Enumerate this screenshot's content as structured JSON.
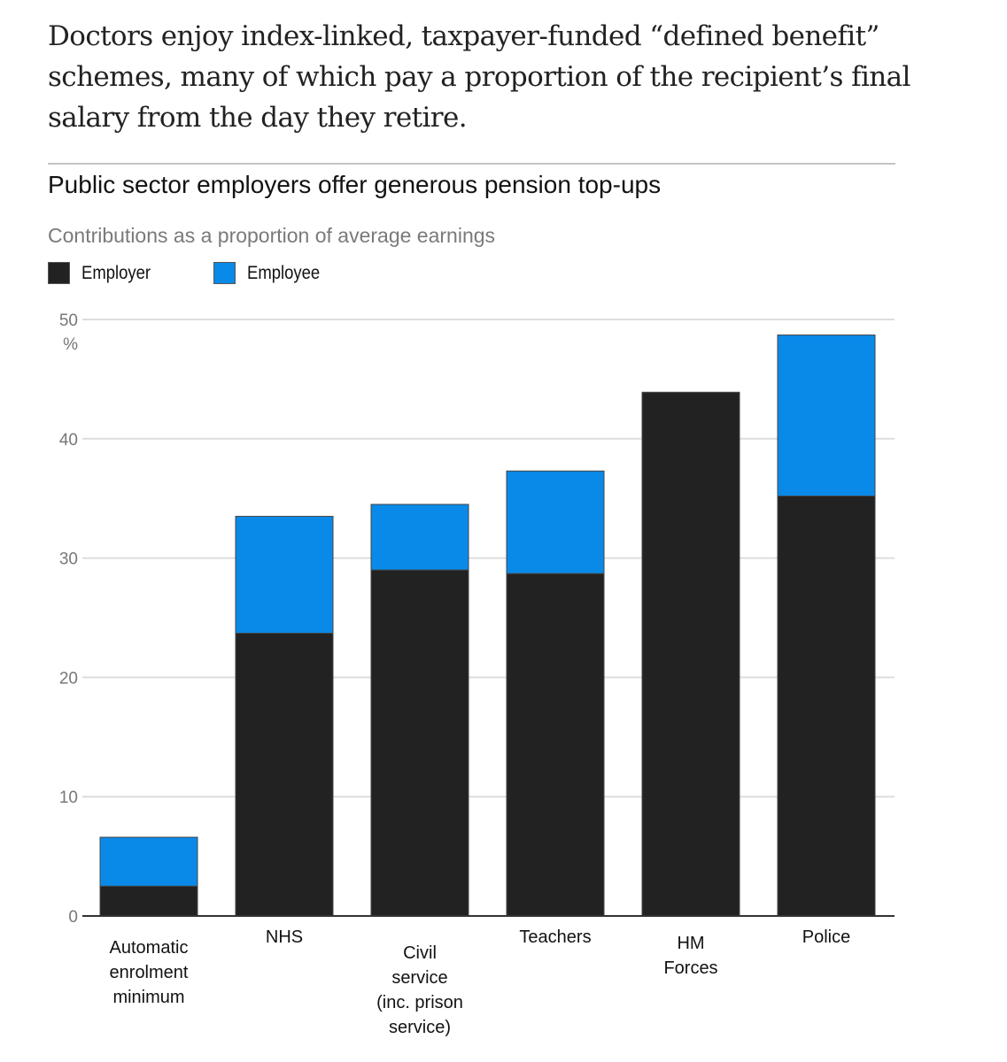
{
  "intro_text": "Doctors enjoy index-linked, taxpayer-funded “defined benefit” schemes, many of which pay a proportion of the recipient’s final salary from the day they retire.",
  "chart_data": {
    "type": "bar",
    "stacked": true,
    "title": "Public sector employers offer generous pension top-ups",
    "subtitle": "Contributions as a proportion of average earnings",
    "xlabel": "",
    "ylabel": "%",
    "ylim": [
      0,
      50
    ],
    "yticks": [
      0,
      10,
      20,
      30,
      40,
      50
    ],
    "grid": true,
    "legend_position": "top-left",
    "categories": [
      [
        "Automatic",
        "enrolment",
        "minimum"
      ],
      [
        "NHS"
      ],
      [
        "Civil",
        "service",
        "(inc. prison",
        "service)"
      ],
      [
        "Teachers"
      ],
      [
        "HM",
        "Forces"
      ],
      [
        "Police"
      ]
    ],
    "category_names": [
      "Automatic enrolment minimum",
      "NHS",
      "Civil service (inc. prison service)",
      "Teachers",
      "HM Forces",
      "Police"
    ],
    "series": [
      {
        "name": "Employer",
        "color": "#222222",
        "values": [
          2.5,
          23.7,
          29.0,
          28.7,
          43.9,
          35.2
        ]
      },
      {
        "name": "Employee",
        "color": "#0a8ae8",
        "values": [
          4.1,
          9.8,
          5.5,
          8.6,
          0.0,
          13.5
        ]
      }
    ]
  },
  "legend": {
    "employer_label": "Employer",
    "employee_label": "Employee",
    "employer_color": "#222222",
    "employee_color": "#0a8ae8"
  },
  "axis_unit": "%"
}
